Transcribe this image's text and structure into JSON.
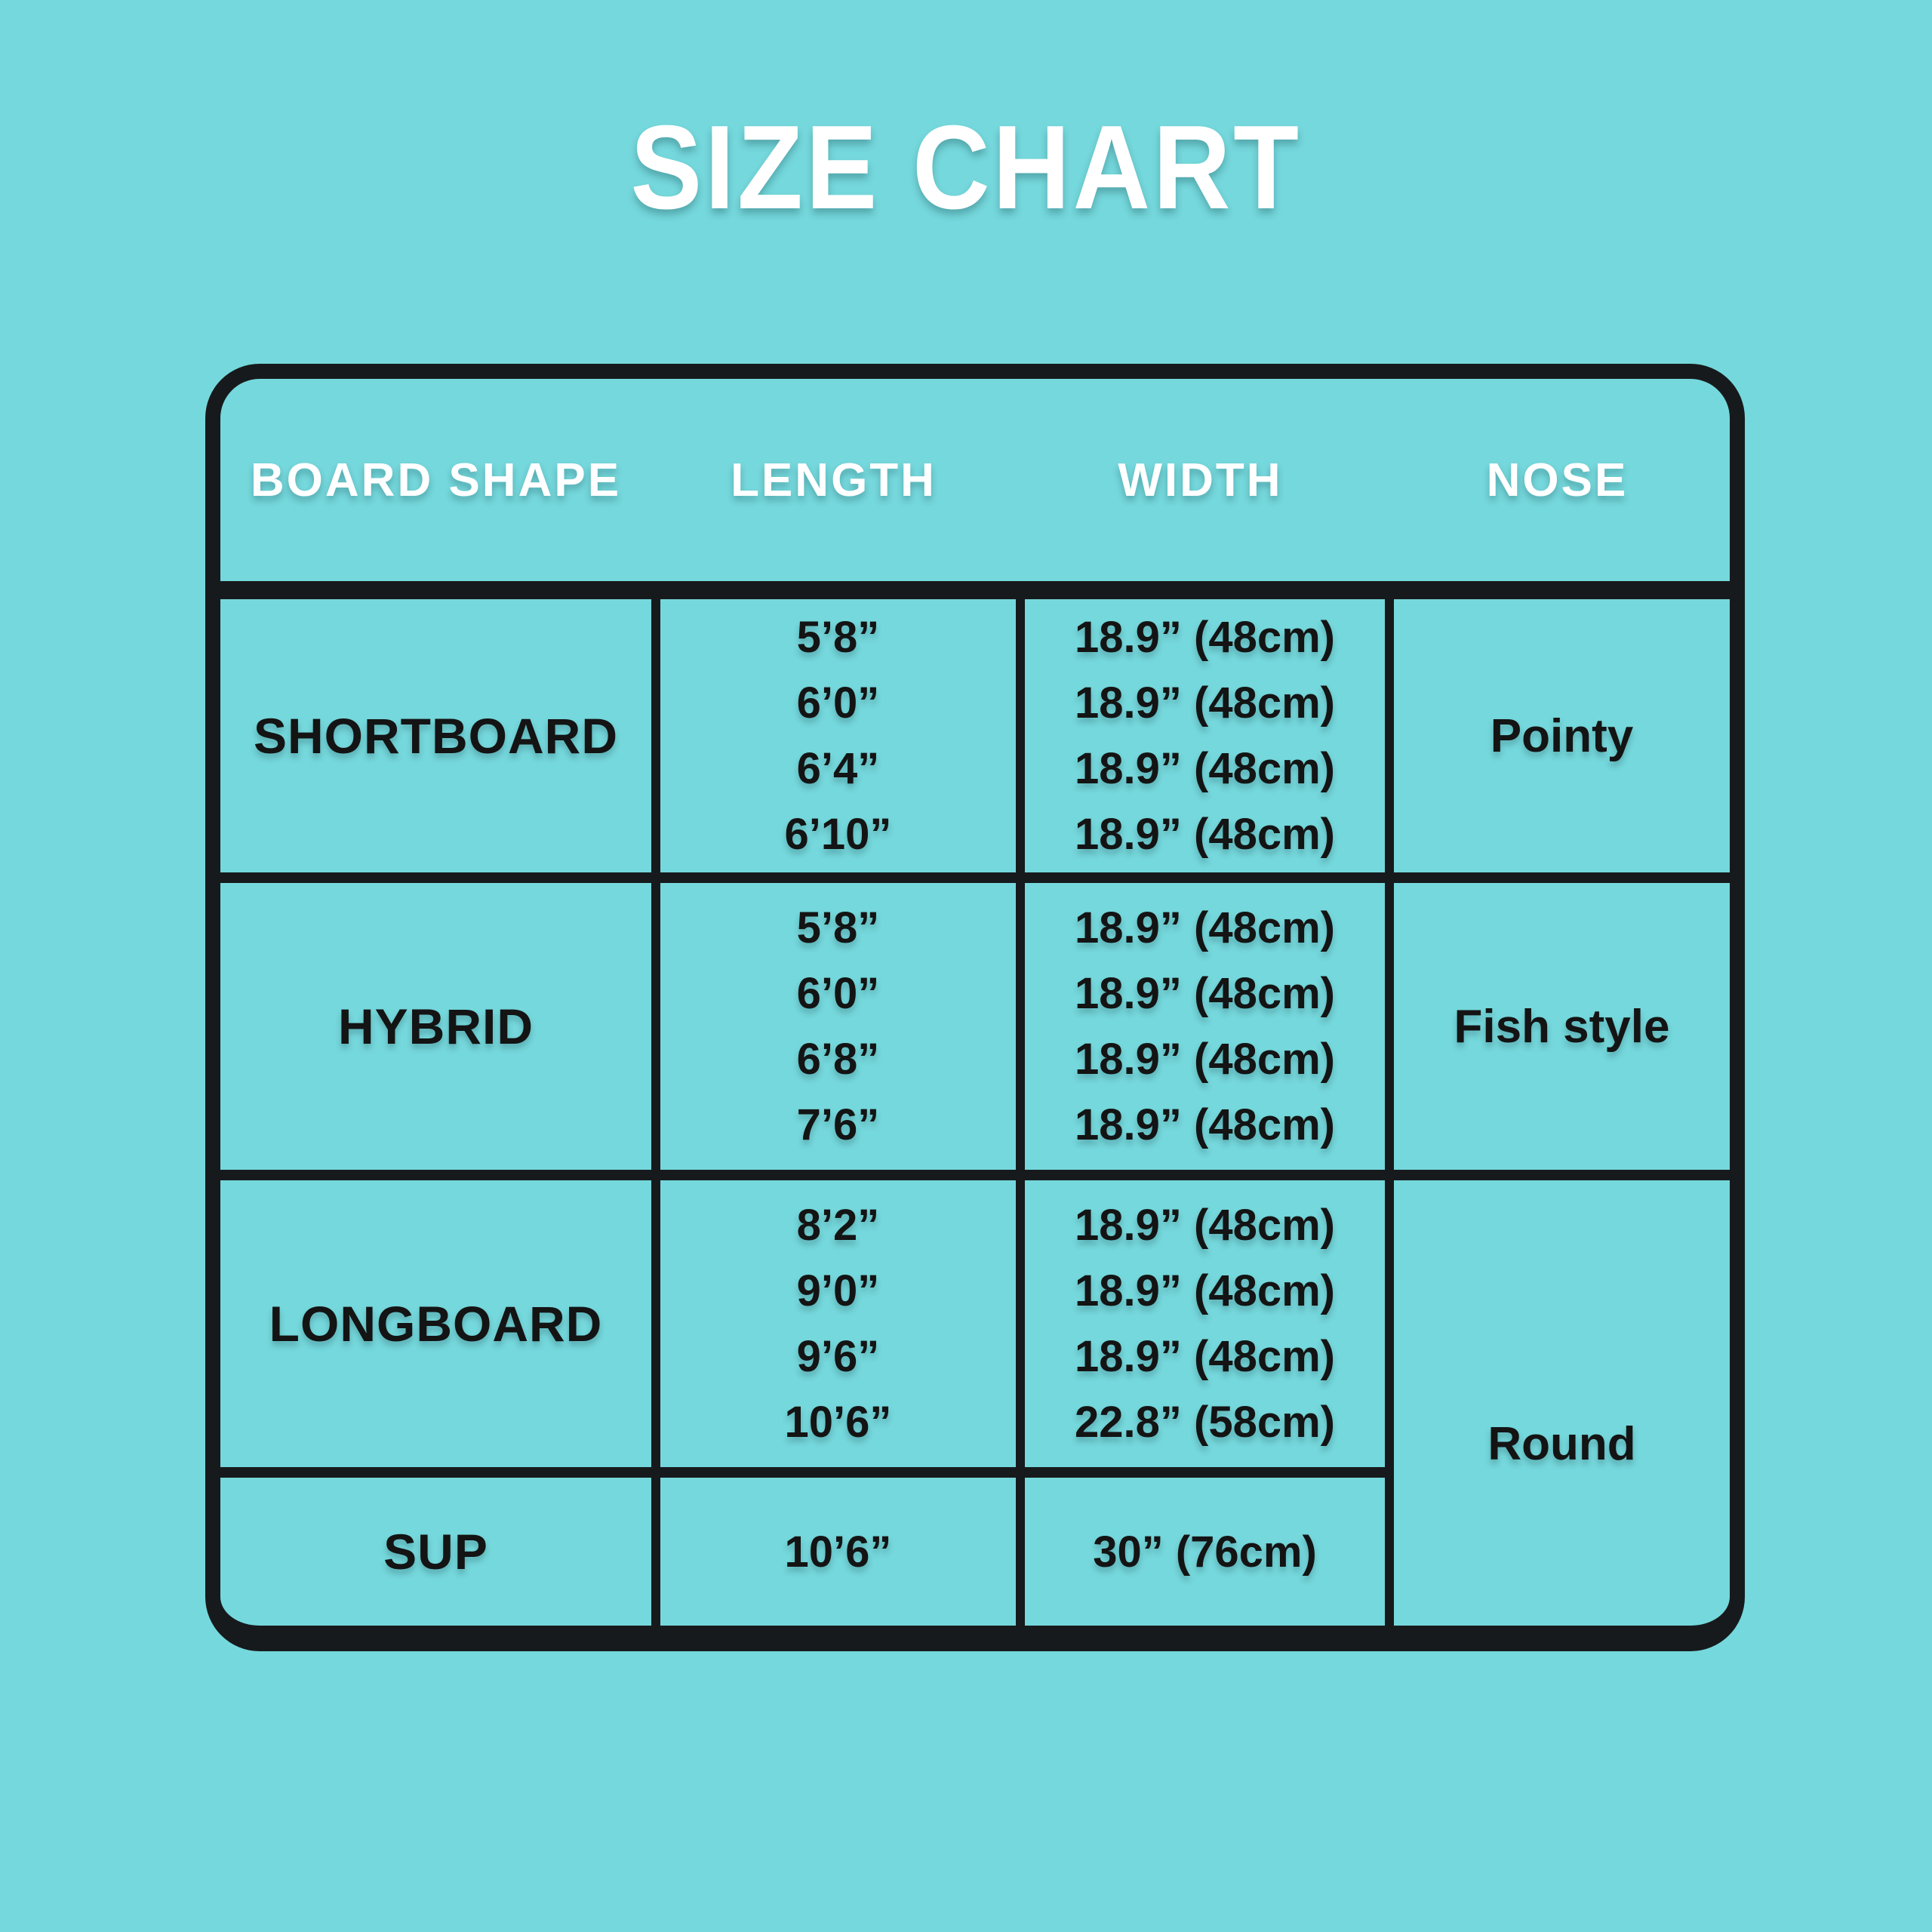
{
  "chart_data": {
    "type": "table",
    "title": "SIZE CHART",
    "columns": [
      "BOARD SHAPE",
      "LENGTH",
      "WIDTH",
      "NOSE"
    ],
    "rows": [
      {
        "board_shape": "SHORTBOARD",
        "lengths": [
          "5’8”",
          "6’0”",
          "6’4”",
          "6’10”"
        ],
        "widths": [
          "18.9” (48cm)",
          "18.9” (48cm)",
          "18.9” (48cm)",
          "18.9” (48cm)"
        ],
        "nose": "Pointy"
      },
      {
        "board_shape": "HYBRID",
        "lengths": [
          "5’8”",
          "6’0”",
          "6’8”",
          "7’6”"
        ],
        "widths": [
          "18.9” (48cm)",
          "18.9” (48cm)",
          "18.9” (48cm)",
          "18.9” (48cm)"
        ],
        "nose": "Fish style"
      },
      {
        "board_shape": "LONGBOARD",
        "lengths": [
          "8’2”",
          "9’0”",
          "9’6”",
          "10’6”"
        ],
        "widths": [
          "18.9” (48cm)",
          "18.9” (48cm)",
          "18.9” (48cm)",
          "22.8” (58cm)"
        ],
        "nose": "Round"
      },
      {
        "board_shape": "SUP",
        "lengths": [
          "10’6”"
        ],
        "widths": [
          "30” (76cm)"
        ],
        "nose": "Round"
      }
    ],
    "layout": {
      "merged_cells": [
        {
          "column": "NOSE",
          "value": "Round",
          "spans_rows": [
            "LONGBOARD",
            "SUP"
          ]
        }
      ],
      "header_dividers": false,
      "grid_on": true
    }
  },
  "colors": {
    "background": "#75d8dc",
    "table_border": "#171a1c",
    "header_text": "#ffffff",
    "body_text": "#141414"
  }
}
